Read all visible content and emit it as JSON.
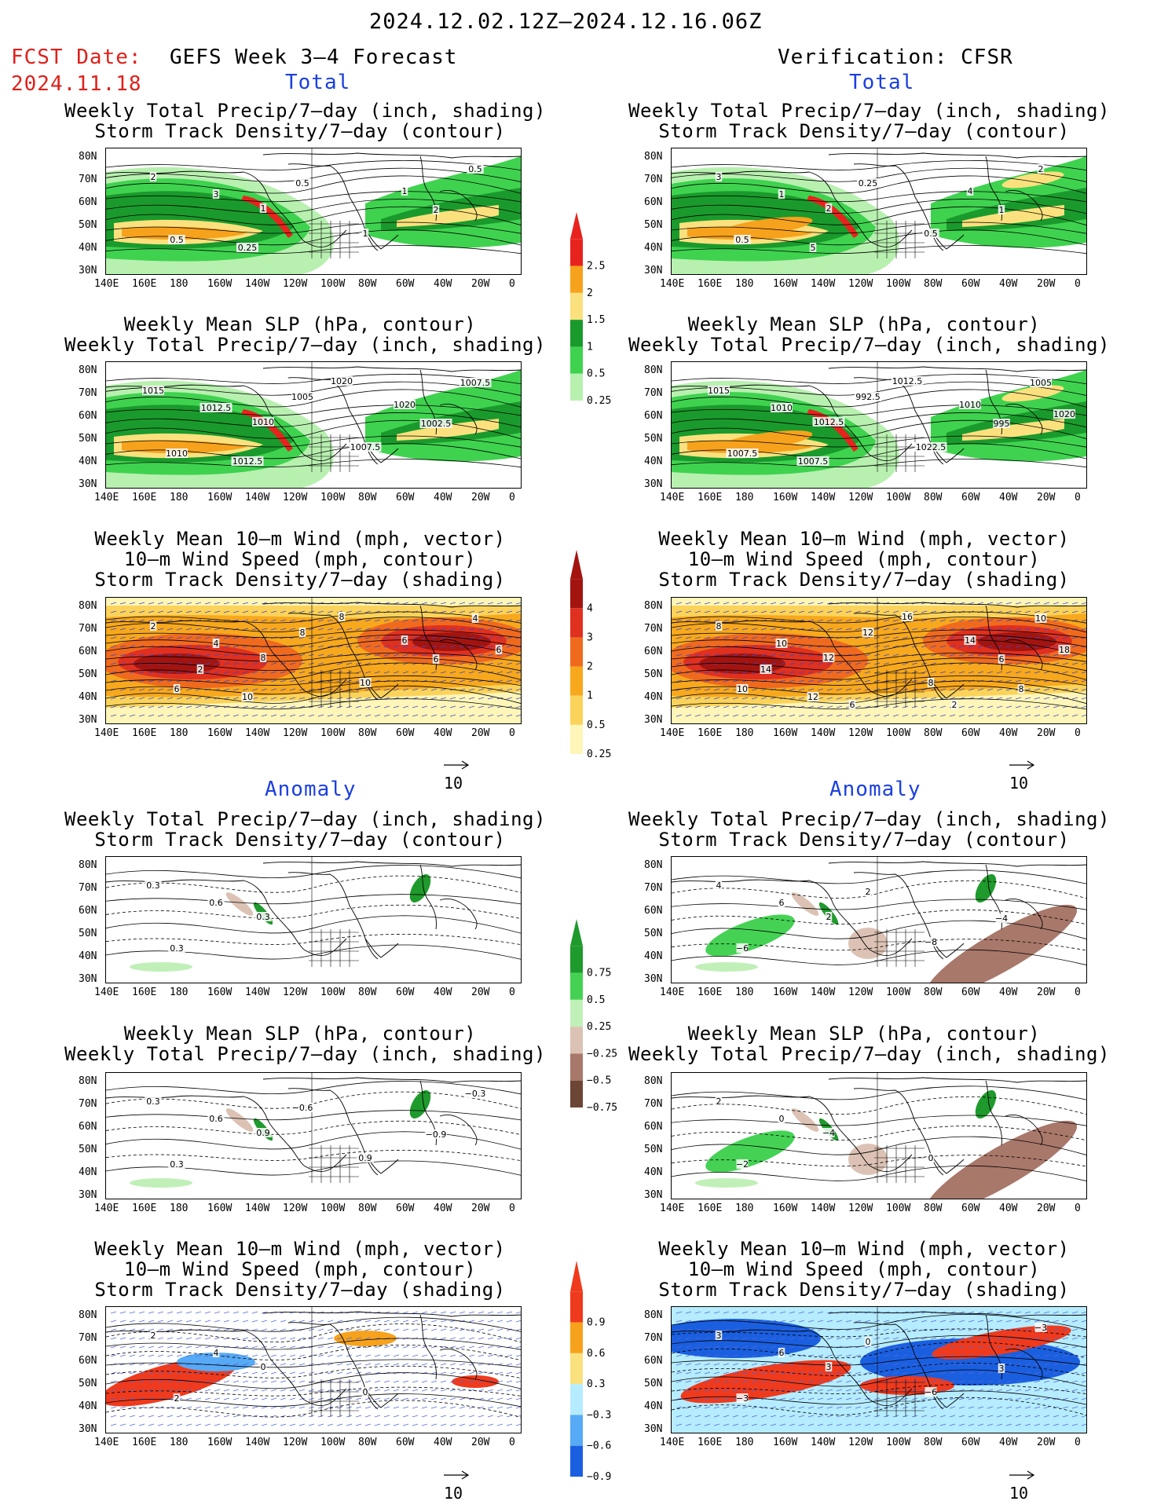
{
  "header": {
    "date_range": "2024.12.02.12Z–2024.12.16.06Z",
    "fcst_label": "FCST Date:",
    "fcst_date": "2024.11.18",
    "left_title": "GEFS Week 3–4 Forecast",
    "right_title": "Verification: CFSR"
  },
  "sections": {
    "total": "Total",
    "anomaly": "Anomaly"
  },
  "panel_titles": {
    "precip_storm": [
      "Weekly Total Precip/7–day (inch, shading)",
      "Storm Track Density/7–day (contour)"
    ],
    "slp_precip": [
      "Weekly Mean SLP (hPa, contour)",
      "Weekly Total Precip/7–day (inch, shading)"
    ],
    "wind_storm": [
      "Weekly Mean 10–m Wind (mph, vector)",
      "10–m Wind Speed (mph, contour)",
      "Storm Track Density/7–day (shading)"
    ]
  },
  "axes": {
    "lat_labels": [
      "80N",
      "70N",
      "60N",
      "50N",
      "40N",
      "30N"
    ],
    "lon_labels": [
      "140E",
      "160E",
      "180",
      "160W",
      "140W",
      "120W",
      "100W",
      "80W",
      "60W",
      "40W",
      "20W",
      "0"
    ]
  },
  "vector_ref": "10",
  "colorbars": {
    "precip_total": {
      "labels": [
        "2.5",
        "2",
        "1.5",
        "1",
        "0.5",
        "0.25"
      ],
      "colors": [
        "#e8231d",
        "#f7a21c",
        "#fbe17d",
        "#1a9a2c",
        "#3fd24f",
        "#b8f0b0"
      ]
    },
    "storm_total": {
      "labels": [
        "4",
        "3",
        "2",
        "1",
        "0.5",
        "0.25"
      ],
      "colors": [
        "#a31410",
        "#e0301f",
        "#f06a1e",
        "#f7a81c",
        "#fbd35a",
        "#fef6b8"
      ]
    },
    "precip_anom": {
      "labels": [
        "0.75",
        "0.5",
        "0.25",
        "−0.25",
        "−0.5",
        "−0.75"
      ],
      "colors": [
        "#1f9a2c",
        "#45d254",
        "#c0f0b8",
        "#dcc2b4",
        "#a8786a",
        "#6d4535"
      ]
    },
    "storm_anom": {
      "labels": [
        "0.9",
        "0.6",
        "0.3",
        "−0.3",
        "−0.6",
        "−0.9"
      ],
      "colors": [
        "#ef3a1d",
        "#f7a21c",
        "#fbe17d",
        "#b6ecff",
        "#57aaf5",
        "#1a5fe0"
      ]
    }
  },
  "contour_labels": {
    "p1": [
      "2",
      "3",
      "1",
      "0.5",
      "1",
      "2",
      "0.5",
      "0.5",
      "0.25",
      "1"
    ],
    "p2": [
      "1015",
      "1012.5",
      "1010",
      "1010",
      "1007.5",
      "1002.5",
      "1005",
      "1007.5",
      "1012.5",
      "1020",
      "1020"
    ],
    "p3": [
      "2",
      "4",
      "8",
      "6",
      "10",
      "6",
      "8",
      "4",
      "10",
      "6",
      "8",
      "6",
      "2"
    ],
    "p4": [
      "3",
      "1",
      "2",
      "0.5",
      "0.5",
      "1",
      "0.25",
      "2",
      "5",
      "4"
    ],
    "p5": [
      "1015",
      "1010",
      "1012.5",
      "1007.5",
      "1022.5",
      "995",
      "992.5",
      "1005",
      "1007.5",
      "1010",
      "1012.5",
      "1020"
    ],
    "p6": [
      "8",
      "10",
      "12",
      "10",
      "8",
      "6",
      "12",
      "10",
      "12",
      "14",
      "16",
      "18",
      "14",
      "8",
      "6",
      "2"
    ],
    "p7": [
      "0.3",
      "0.6",
      "0.3",
      "0.3"
    ],
    "p8": [
      "0.3",
      "0.6",
      "0.9",
      "0.3",
      "0.9",
      "−0.9",
      "−0.6",
      "−0.3"
    ],
    "p9": [
      "2",
      "4",
      "0",
      "2",
      "0"
    ],
    "p10": [
      "4",
      "6",
      "2",
      "−6",
      "−8",
      "−4",
      "2"
    ],
    "p11": [
      "2",
      "0",
      "−4",
      "−2",
      "0"
    ],
    "p12": [
      "3",
      "6",
      "3",
      "−3",
      "−6",
      "3",
      "0",
      "−3"
    ]
  }
}
